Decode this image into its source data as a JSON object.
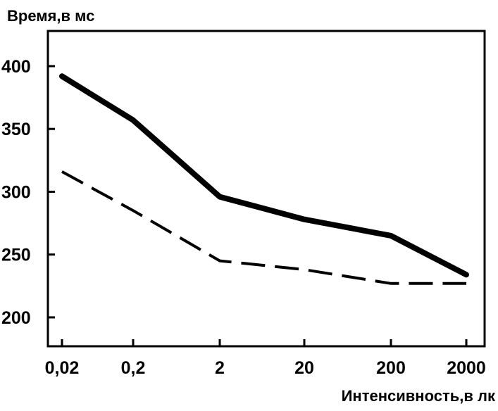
{
  "chart_data": {
    "type": "line",
    "ylabel": "Время,в мс",
    "xlabel": "Интенсивность,в лк",
    "x_scale": "log",
    "categories": [
      "0,02",
      "0,2",
      "2",
      "20",
      "200",
      "2000"
    ],
    "x": [
      0.02,
      0.2,
      2,
      20,
      200,
      2000
    ],
    "yticks": [
      "200",
      "250",
      "300",
      "350",
      "400"
    ],
    "ylim": [
      177,
      428
    ],
    "grid": false,
    "legend": "none",
    "series": [
      {
        "style": "solid",
        "color": "#000000",
        "values": [
          392,
          357,
          296,
          278,
          265,
          234
        ]
      },
      {
        "style": "dashed",
        "color": "#000000",
        "values": [
          316,
          285,
          245,
          238,
          227,
          227
        ]
      }
    ]
  }
}
